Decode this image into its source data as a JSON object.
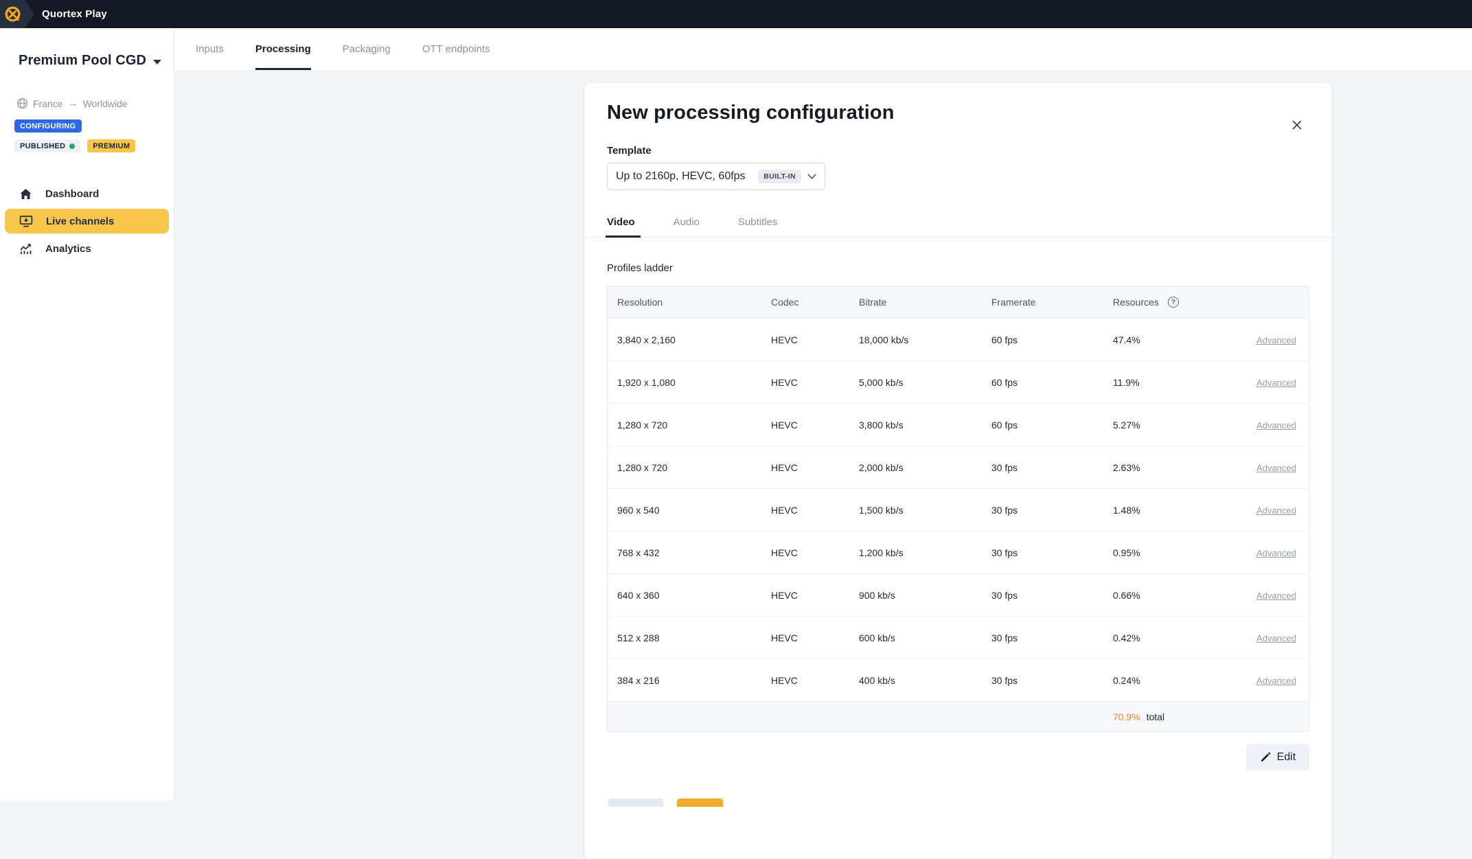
{
  "app": {
    "brand": "Quortex Play",
    "logo_icon": "quortex-logo-icon"
  },
  "top_tabs": [
    {
      "label": "Inputs",
      "active": false
    },
    {
      "label": "Processing",
      "active": true
    },
    {
      "label": "Packaging",
      "active": false
    },
    {
      "label": "OTT endpoints",
      "active": false
    }
  ],
  "sidebar": {
    "pool_name": "Premium Pool CGD",
    "region": {
      "icon": "globe-icon",
      "from": "France",
      "arrow": "→",
      "to": "Worldwide"
    },
    "badges": [
      {
        "label": "CONFIGURING",
        "style": "blue",
        "dot": false
      },
      {
        "label": "PUBLISHED",
        "style": "gray",
        "dot": true
      },
      {
        "label": "PREMIUM",
        "style": "yellow",
        "dot": false
      }
    ],
    "nav": [
      {
        "label": "Dashboard",
        "icon": "home-icon",
        "active": false
      },
      {
        "label": "Live channels",
        "icon": "monitor-icon",
        "active": true
      },
      {
        "label": "Analytics",
        "icon": "chart-icon",
        "active": false
      }
    ]
  },
  "modal": {
    "title": "New processing configuration",
    "close_icon": "close-icon",
    "template": {
      "label": "Template",
      "value": "Up to 2160p, HEVC, 60fps",
      "badge": "BUILT-IN",
      "chevron_icon": "chevron-down-icon"
    },
    "tabs": [
      {
        "label": "Video",
        "active": true
      },
      {
        "label": "Audio",
        "active": false
      },
      {
        "label": "Subtitles",
        "active": false
      }
    ],
    "profiles": {
      "section_title": "Profiles ladder",
      "columns": [
        "Resolution",
        "Codec",
        "Bitrate",
        "Framerate",
        "Resources"
      ],
      "help_column": "Resources",
      "help_icon": "question-circle-icon",
      "action_label": "Advanced",
      "rows": [
        {
          "resolution": "3,840 x 2,160",
          "codec": "HEVC",
          "bitrate": "18,000 kb/s",
          "framerate": "60 fps",
          "resources": "47.4%"
        },
        {
          "resolution": "1,920 x 1,080",
          "codec": "HEVC",
          "bitrate": "5,000 kb/s",
          "framerate": "60 fps",
          "resources": "11.9%"
        },
        {
          "resolution": "1,280 x 720",
          "codec": "HEVC",
          "bitrate": "3,800 kb/s",
          "framerate": "60 fps",
          "resources": "5.27%"
        },
        {
          "resolution": "1,280 x 720",
          "codec": "HEVC",
          "bitrate": "2,000 kb/s",
          "framerate": "30 fps",
          "resources": "2.63%"
        },
        {
          "resolution": "960 x 540",
          "codec": "HEVC",
          "bitrate": "1,500 kb/s",
          "framerate": "30 fps",
          "resources": "1.48%"
        },
        {
          "resolution": "768 x 432",
          "codec": "HEVC",
          "bitrate": "1,200 kb/s",
          "framerate": "30 fps",
          "resources": "0.95%"
        },
        {
          "resolution": "640 x 360",
          "codec": "HEVC",
          "bitrate": "900 kb/s",
          "framerate": "30 fps",
          "resources": "0.66%"
        },
        {
          "resolution": "512 x 288",
          "codec": "HEVC",
          "bitrate": "600 kb/s",
          "framerate": "30 fps",
          "resources": "0.42%"
        },
        {
          "resolution": "384 x 216",
          "codec": "HEVC",
          "bitrate": "400 kb/s",
          "framerate": "30 fps",
          "resources": "0.24%"
        }
      ],
      "total": {
        "value": "70.9%",
        "label": "total"
      }
    },
    "edit_button": {
      "label": "Edit",
      "icon": "pencil-icon"
    }
  },
  "colors": {
    "topbar": "#141925",
    "accent_yellow": "#f7c64a",
    "accent_orange": "#f2a71f",
    "badge_blue": "#2d68e8",
    "published_dot": "#27a862",
    "total_orange": "#e8862d",
    "content_bg": "#f3f6f9"
  }
}
